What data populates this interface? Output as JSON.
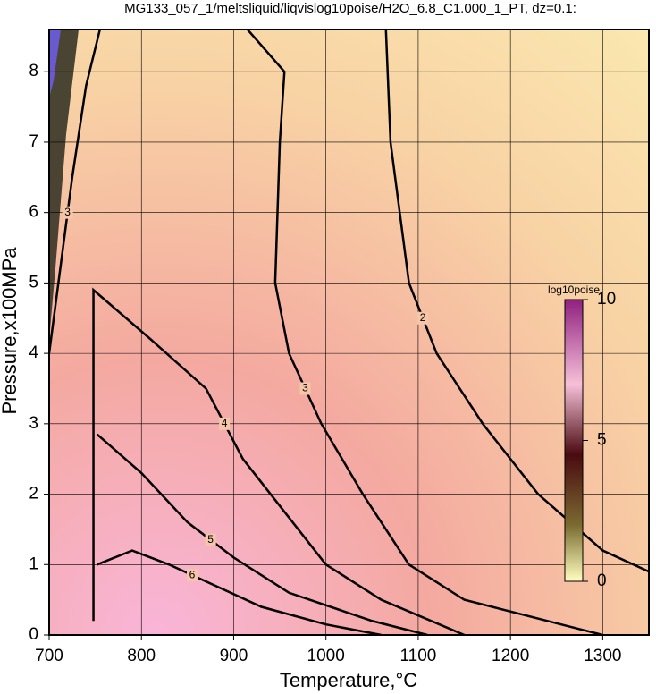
{
  "chart_data": {
    "type": "contour",
    "title": "MG133_057_1/meltsliquid/liqvislog10poise/H2O_6.8_C1.000_1_PT, dz=0.1:",
    "x_label": "Temperature,°C",
    "y_label": "Pressure,x100MPa",
    "xlim": [
      700,
      1350
    ],
    "ylim": [
      0,
      8.6
    ],
    "xticks": [
      700,
      800,
      900,
      1000,
      1100,
      1200,
      1300
    ],
    "yticks": [
      0,
      1,
      2,
      3,
      4,
      5,
      6,
      7,
      8
    ],
    "grid": true,
    "contours": [
      {
        "level": 2,
        "x": [
          1065,
          1070,
          1080,
          1090,
          1120,
          1170,
          1230,
          1300,
          1350
        ],
        "y": [
          8.6,
          7,
          6,
          5,
          4,
          3,
          2,
          1.2,
          0.9
        ]
      },
      {
        "level": 3,
        "x": [
          915,
          955,
          950,
          945,
          960,
          995,
          1040,
          1090,
          1150,
          1300
        ],
        "y": [
          8.6,
          8,
          7,
          5,
          4,
          3,
          2,
          1,
          0.5,
          0
        ]
      },
      {
        "level": 3,
        "x": [
          755,
          740,
          725,
          715,
          705,
          700
        ],
        "y": [
          8.6,
          7.8,
          6.5,
          5.5,
          4.5,
          4
        ]
      },
      {
        "level": 4,
        "x": [
          748,
          748,
          810,
          870,
          910,
          940,
          1000,
          1060,
          1150
        ],
        "y": [
          0.2,
          4.9,
          4.2,
          3.5,
          2.5,
          2,
          1,
          0.5,
          0
        ]
      },
      {
        "level": 5,
        "x": [
          752,
          800,
          850,
          900,
          960,
          1050,
          1110
        ],
        "y": [
          2.85,
          2.3,
          1.6,
          1.1,
          0.6,
          0.2,
          0
        ]
      },
      {
        "level": 6,
        "x": [
          752,
          790,
          830,
          880,
          930,
          1000,
          1060
        ],
        "y": [
          1,
          1.2,
          1,
          0.7,
          0.4,
          0.15,
          0
        ]
      }
    ],
    "colorbar": {
      "label": "log10poise",
      "lim": [
        0,
        10
      ],
      "ticks": [
        0,
        5,
        10
      ]
    }
  }
}
